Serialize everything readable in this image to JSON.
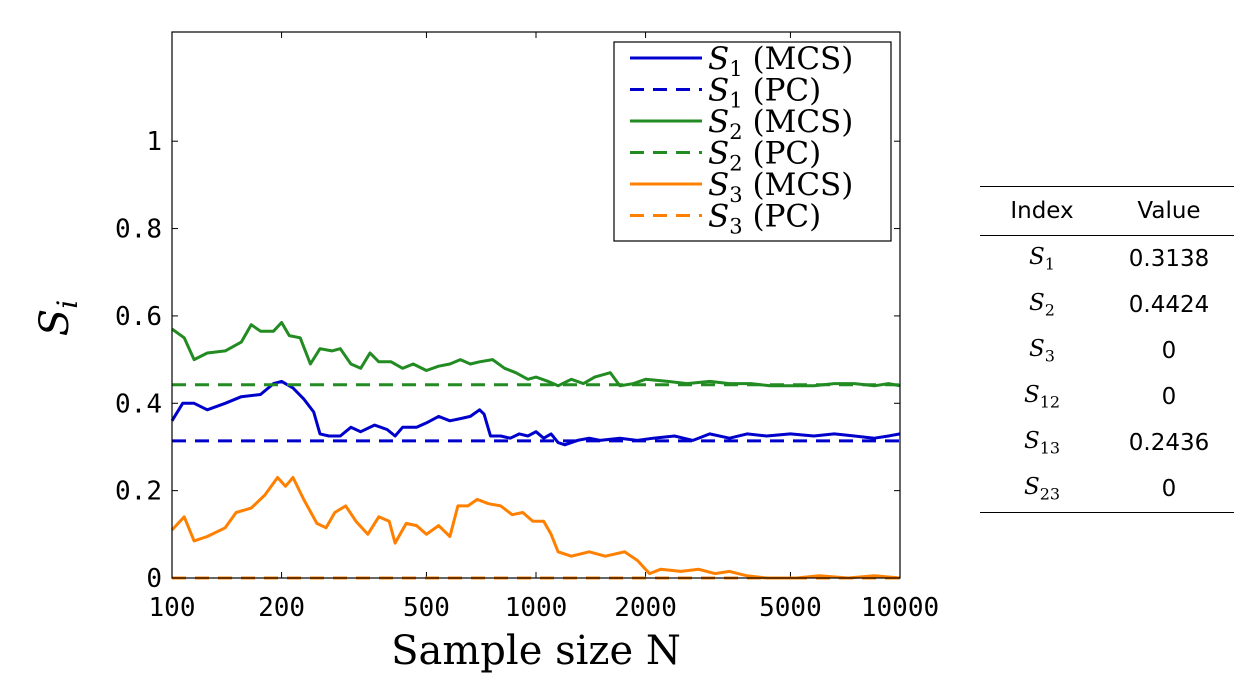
{
  "chart_data": {
    "type": "line",
    "xlabel": "Sample size N",
    "ylabel": "S_i",
    "x_scale": "log",
    "xlim": [
      100,
      10000
    ],
    "ylim": [
      0,
      1.25
    ],
    "xticks": [
      100,
      200,
      500,
      1000,
      2000,
      5000,
      10000
    ],
    "xtick_labels": [
      "100",
      "200",
      "500",
      "1000",
      "2000",
      "5000",
      "10000"
    ],
    "yticks": [
      0,
      0.2,
      0.4,
      0.6,
      0.8,
      1
    ],
    "ytick_labels": [
      "0",
      "0.2",
      "0.4",
      "0.6",
      "0.8",
      "1"
    ],
    "grid": false,
    "legend_position": "top-right",
    "series": [
      {
        "name": "S_1 (MCS)",
        "color": "#0000cc",
        "style": "solid",
        "points": [
          [
            100,
            0.36
          ],
          [
            107,
            0.4
          ],
          [
            115,
            0.4
          ],
          [
            125,
            0.385
          ],
          [
            140,
            0.4
          ],
          [
            155,
            0.415
          ],
          [
            175,
            0.42
          ],
          [
            190,
            0.445
          ],
          [
            200,
            0.45
          ],
          [
            215,
            0.435
          ],
          [
            230,
            0.41
          ],
          [
            245,
            0.38
          ],
          [
            255,
            0.33
          ],
          [
            270,
            0.325
          ],
          [
            290,
            0.325
          ],
          [
            310,
            0.345
          ],
          [
            330,
            0.335
          ],
          [
            360,
            0.35
          ],
          [
            390,
            0.34
          ],
          [
            410,
            0.325
          ],
          [
            430,
            0.345
          ],
          [
            470,
            0.345
          ],
          [
            500,
            0.355
          ],
          [
            540,
            0.37
          ],
          [
            580,
            0.36
          ],
          [
            620,
            0.365
          ],
          [
            660,
            0.37
          ],
          [
            700,
            0.385
          ],
          [
            720,
            0.375
          ],
          [
            750,
            0.325
          ],
          [
            800,
            0.325
          ],
          [
            850,
            0.32
          ],
          [
            900,
            0.33
          ],
          [
            950,
            0.325
          ],
          [
            1000,
            0.335
          ],
          [
            1050,
            0.32
          ],
          [
            1100,
            0.33
          ],
          [
            1150,
            0.31
          ],
          [
            1200,
            0.305
          ],
          [
            1300,
            0.315
          ],
          [
            1400,
            0.32
          ],
          [
            1500,
            0.315
          ],
          [
            1700,
            0.32
          ],
          [
            1900,
            0.315
          ],
          [
            2100,
            0.32
          ],
          [
            2400,
            0.325
          ],
          [
            2700,
            0.315
          ],
          [
            3000,
            0.33
          ],
          [
            3400,
            0.32
          ],
          [
            3800,
            0.33
          ],
          [
            4300,
            0.325
          ],
          [
            5000,
            0.33
          ],
          [
            5800,
            0.325
          ],
          [
            6600,
            0.33
          ],
          [
            7500,
            0.325
          ],
          [
            8500,
            0.32
          ],
          [
            9300,
            0.325
          ],
          [
            10000,
            0.33
          ]
        ]
      },
      {
        "name": "S_1 (PC)",
        "color": "#0000cc",
        "style": "dashed",
        "points": [
          [
            100,
            0.3138
          ],
          [
            10000,
            0.3138
          ]
        ]
      },
      {
        "name": "S_2 (MCS)",
        "color": "#228b22",
        "style": "solid",
        "points": [
          [
            100,
            0.57
          ],
          [
            108,
            0.55
          ],
          [
            115,
            0.5
          ],
          [
            125,
            0.515
          ],
          [
            140,
            0.52
          ],
          [
            155,
            0.54
          ],
          [
            165,
            0.58
          ],
          [
            175,
            0.565
          ],
          [
            190,
            0.565
          ],
          [
            200,
            0.585
          ],
          [
            210,
            0.555
          ],
          [
            225,
            0.55
          ],
          [
            240,
            0.49
          ],
          [
            255,
            0.525
          ],
          [
            275,
            0.52
          ],
          [
            290,
            0.525
          ],
          [
            310,
            0.49
          ],
          [
            330,
            0.48
          ],
          [
            350,
            0.515
          ],
          [
            370,
            0.495
          ],
          [
            400,
            0.495
          ],
          [
            430,
            0.48
          ],
          [
            460,
            0.49
          ],
          [
            500,
            0.475
          ],
          [
            540,
            0.485
          ],
          [
            580,
            0.49
          ],
          [
            620,
            0.5
          ],
          [
            660,
            0.49
          ],
          [
            700,
            0.495
          ],
          [
            760,
            0.5
          ],
          [
            820,
            0.48
          ],
          [
            880,
            0.47
          ],
          [
            950,
            0.455
          ],
          [
            1000,
            0.46
          ],
          [
            1080,
            0.45
          ],
          [
            1150,
            0.44
          ],
          [
            1250,
            0.455
          ],
          [
            1350,
            0.445
          ],
          [
            1450,
            0.46
          ],
          [
            1600,
            0.47
          ],
          [
            1700,
            0.44
          ],
          [
            1850,
            0.445
          ],
          [
            2000,
            0.455
          ],
          [
            2300,
            0.45
          ],
          [
            2600,
            0.445
          ],
          [
            3000,
            0.45
          ],
          [
            3400,
            0.445
          ],
          [
            3900,
            0.445
          ],
          [
            4400,
            0.44
          ],
          [
            5000,
            0.44
          ],
          [
            5800,
            0.44
          ],
          [
            6600,
            0.445
          ],
          [
            7500,
            0.445
          ],
          [
            8500,
            0.44
          ],
          [
            9300,
            0.445
          ],
          [
            10000,
            0.44
          ]
        ]
      },
      {
        "name": "S_2 (PC)",
        "color": "#228b22",
        "style": "dashed",
        "points": [
          [
            100,
            0.4424
          ],
          [
            10000,
            0.4424
          ]
        ]
      },
      {
        "name": "S_3 (MCS)",
        "color": "#ff8000",
        "style": "solid",
        "points": [
          [
            100,
            0.11
          ],
          [
            108,
            0.14
          ],
          [
            115,
            0.085
          ],
          [
            125,
            0.095
          ],
          [
            140,
            0.115
          ],
          [
            150,
            0.15
          ],
          [
            165,
            0.16
          ],
          [
            180,
            0.19
          ],
          [
            195,
            0.23
          ],
          [
            205,
            0.21
          ],
          [
            215,
            0.23
          ],
          [
            230,
            0.18
          ],
          [
            250,
            0.125
          ],
          [
            265,
            0.115
          ],
          [
            280,
            0.15
          ],
          [
            300,
            0.165
          ],
          [
            320,
            0.13
          ],
          [
            345,
            0.1
          ],
          [
            370,
            0.14
          ],
          [
            395,
            0.13
          ],
          [
            410,
            0.08
          ],
          [
            440,
            0.125
          ],
          [
            470,
            0.12
          ],
          [
            500,
            0.1
          ],
          [
            540,
            0.12
          ],
          [
            580,
            0.095
          ],
          [
            610,
            0.165
          ],
          [
            650,
            0.165
          ],
          [
            690,
            0.18
          ],
          [
            740,
            0.17
          ],
          [
            800,
            0.165
          ],
          [
            860,
            0.145
          ],
          [
            920,
            0.15
          ],
          [
            980,
            0.13
          ],
          [
            1050,
            0.13
          ],
          [
            1100,
            0.1
          ],
          [
            1150,
            0.06
          ],
          [
            1250,
            0.05
          ],
          [
            1400,
            0.06
          ],
          [
            1550,
            0.05
          ],
          [
            1750,
            0.06
          ],
          [
            1900,
            0.04
          ],
          [
            2050,
            0.01
          ],
          [
            2200,
            0.02
          ],
          [
            2500,
            0.015
          ],
          [
            2800,
            0.02
          ],
          [
            3100,
            0.01
          ],
          [
            3400,
            0.015
          ],
          [
            3800,
            0.005
          ],
          [
            4300,
            0.0
          ],
          [
            5200,
            0.0
          ],
          [
            6000,
            0.005
          ],
          [
            7200,
            0.0
          ],
          [
            8500,
            0.005
          ],
          [
            10000,
            0.0
          ]
        ]
      },
      {
        "name": "S_3 (PC)",
        "color": "#ff8000",
        "style": "dashed",
        "points": [
          [
            100,
            0
          ],
          [
            10000,
            0
          ]
        ]
      }
    ],
    "legend": [
      {
        "main": "S",
        "sub": "1",
        "suffix": "(MCS)"
      },
      {
        "main": "S",
        "sub": "1",
        "suffix": "(PC)"
      },
      {
        "main": "S",
        "sub": "2",
        "suffix": "(MCS)"
      },
      {
        "main": "S",
        "sub": "2",
        "suffix": "(PC)"
      },
      {
        "main": "S",
        "sub": "3",
        "suffix": "(MCS)"
      },
      {
        "main": "S",
        "sub": "3",
        "suffix": "(PC)"
      }
    ]
  },
  "table": {
    "headers": [
      "Index",
      "Value"
    ],
    "rows": [
      {
        "index": "S",
        "sub": "1",
        "value": "0.3138"
      },
      {
        "index": "S",
        "sub": "2",
        "value": "0.4424"
      },
      {
        "index": "S",
        "sub": "3",
        "value": "0"
      },
      {
        "index": "S",
        "sub": "12",
        "value": "0"
      },
      {
        "index": "S",
        "sub": "13",
        "value": "0.2436"
      },
      {
        "index": "S",
        "sub": "23",
        "value": "0"
      }
    ]
  }
}
